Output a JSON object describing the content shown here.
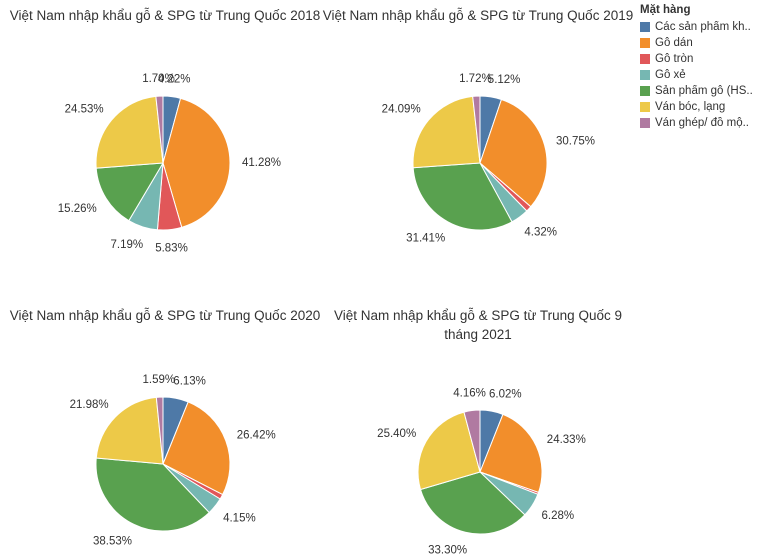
{
  "legend": {
    "title": "Mặt hàng",
    "items": [
      {
        "label": "Các sản phẩm kh..",
        "color": "#4e79a7"
      },
      {
        "label": "Gỗ dán",
        "color": "#f28e2b"
      },
      {
        "label": "Gỗ tròn",
        "color": "#e15759"
      },
      {
        "label": "Gỗ xẻ",
        "color": "#76b7b2"
      },
      {
        "label": "Sản phẩm gỗ (HS..",
        "color": "#59a14f"
      },
      {
        "label": "Ván bóc, lạng",
        "color": "#edc948"
      },
      {
        "label": "Ván ghép/ đồ mộ..",
        "color": "#b07aa1"
      }
    ]
  },
  "chart_data": [
    {
      "type": "pie",
      "title": "Việt Nam nhập khẩu gỗ & SPG từ Trung Quốc 2018",
      "categories": [
        "Các sản phẩm kh..",
        "Gỗ dán",
        "Gỗ tròn",
        "Gỗ xẻ",
        "Sản phẩm gỗ (HS..",
        "Ván bóc, lạng",
        "Ván ghép/ đồ mộ.."
      ],
      "values": [
        4.22,
        41.28,
        5.83,
        7.19,
        15.26,
        24.53,
        1.7
      ],
      "labels": [
        "4.22%",
        "41.28%",
        "5.83%",
        "7.19%",
        "15.26%",
        "24.53%",
        "1.70%"
      ]
    },
    {
      "type": "pie",
      "title": "Việt Nam nhập khẩu gỗ & SPG từ Trung Quốc 2019",
      "categories": [
        "Các sản phẩm kh..",
        "Gỗ dán",
        "Gỗ tròn",
        "Gỗ xẻ",
        "Sản phẩm gỗ (HS..",
        "Ván bóc, lạng",
        "Ván ghép/ đồ mộ.."
      ],
      "values": [
        5.12,
        30.75,
        1.38,
        4.32,
        31.41,
        24.09,
        1.72
      ],
      "labels": [
        "5.12%",
        "30.75%",
        "",
        "4.32%",
        "31.41%",
        "24.09%",
        "1.72%"
      ]
    },
    {
      "type": "pie",
      "title": "Việt Nam nhập khẩu gỗ & SPG từ Trung Quốc 2020",
      "categories": [
        "Các sản phẩm kh..",
        "Gỗ dán",
        "Gỗ tròn",
        "Gỗ xẻ",
        "Sản phẩm gỗ (HS..",
        "Ván bóc, lạng",
        "Ván ghép/ đồ mộ.."
      ],
      "values": [
        6.13,
        26.42,
        1.2,
        4.15,
        38.53,
        21.98,
        1.59
      ],
      "labels": [
        "6.13%",
        "26.42%",
        "",
        "4.15%",
        "38.53%",
        "21.98%",
        "1.59%"
      ]
    },
    {
      "type": "pie",
      "title": "Việt Nam nhập khẩu gỗ & SPG từ Trung Quốc 9 tháng 2021",
      "categories": [
        "Các sản phẩm kh..",
        "Gỗ dán",
        "Gỗ tròn",
        "Gỗ xẻ",
        "Sản phẩm gỗ (HS..",
        "Ván bóc, lạng",
        "Ván ghép/ đồ mộ.."
      ],
      "values": [
        6.02,
        24.33,
        0.51,
        6.28,
        33.3,
        25.4,
        4.16
      ],
      "labels": [
        "6.02%",
        "24.33%",
        "",
        "6.28%",
        "33.30%",
        "25.40%",
        "4.16%"
      ]
    }
  ]
}
